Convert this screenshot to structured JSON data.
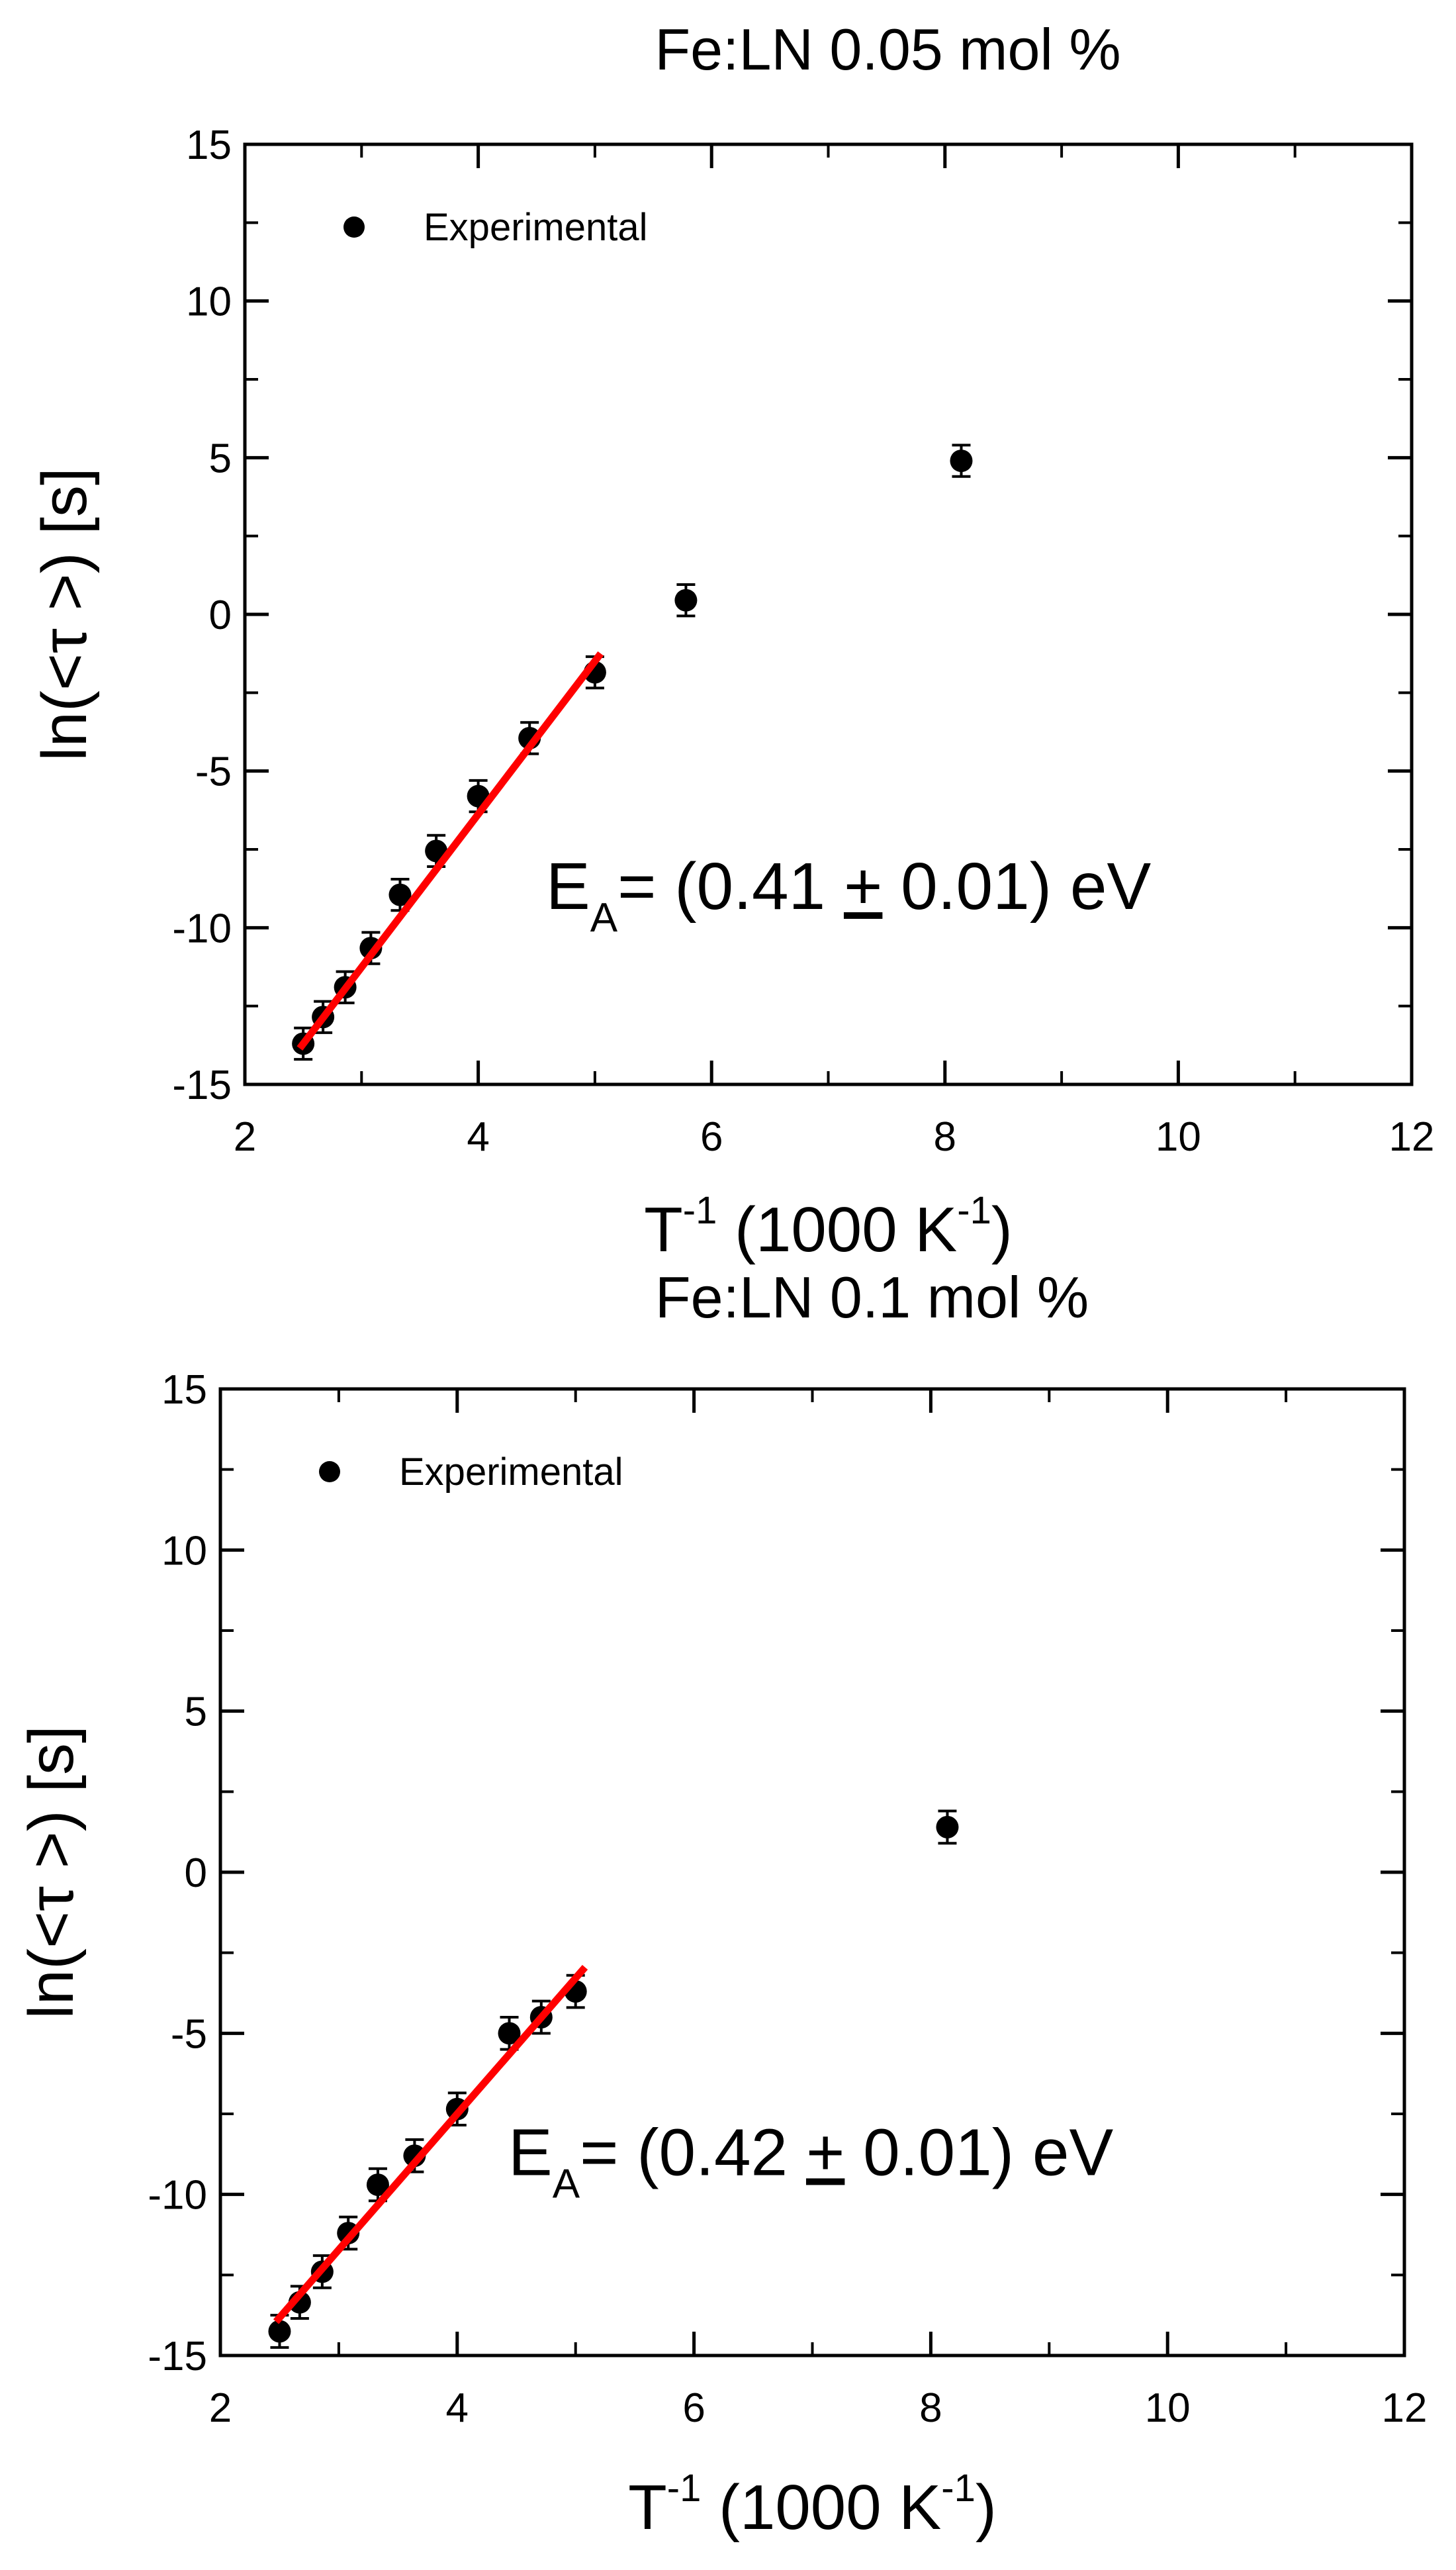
{
  "chart_data": [
    {
      "type": "scatter",
      "title": "Fe:LN 0.05 mol %",
      "xlabel_main": "T",
      "xlabel_sup": "-1",
      "xlabel_mid": " (1000 K",
      "xlabel_sup2": "-1",
      "xlabel_end": ")",
      "ylabel": "ln(<τ >) [s]",
      "xlim": [
        2,
        12
      ],
      "ylim": [
        -15,
        15
      ],
      "xticks": [
        2,
        4,
        6,
        8,
        10,
        12
      ],
      "yticks": [
        -15,
        -10,
        -5,
        0,
        5,
        10,
        15
      ],
      "xticks_minor": [
        3,
        5,
        7,
        9,
        11
      ],
      "yticks_minor": [
        -12.5,
        -7.5,
        -2.5,
        2.5,
        7.5,
        12.5
      ],
      "legend": {
        "label": "Experimental",
        "position": "top-left"
      },
      "annotation": {
        "pre": "E",
        "sub": "A",
        "post": "= (0.41 ",
        "pm": "+",
        "post2": " 0.01) eV"
      },
      "series": [
        {
          "name": "Experimental",
          "marker": "circle",
          "color": "#000000",
          "x": [
            2.5,
            2.67,
            2.86,
            3.08,
            3.33,
            3.64,
            4.0,
            4.44,
            5.0,
            5.78,
            8.14
          ],
          "y": [
            -13.7,
            -12.85,
            -11.9,
            -10.65,
            -8.95,
            -7.55,
            -5.8,
            -3.95,
            -1.85,
            0.45,
            4.9
          ],
          "err": [
            0.5,
            0.5,
            0.5,
            0.5,
            0.5,
            0.5,
            0.5,
            0.5,
            0.5,
            0.5,
            0.5
          ]
        },
        {
          "name": "Linear fit",
          "type": "line",
          "color": "#ff0000",
          "x": [
            2.47,
            5.05
          ],
          "y": [
            -13.85,
            -1.25
          ]
        }
      ]
    },
    {
      "type": "scatter",
      "title": "Fe:LN 0.1 mol %",
      "xlabel_main": "T",
      "xlabel_sup": "-1",
      "xlabel_mid": " (1000 K",
      "xlabel_sup2": "-1",
      "xlabel_end": ")",
      "ylabel": "ln(<τ >) [s]",
      "xlim": [
        2,
        12
      ],
      "ylim": [
        -15,
        15
      ],
      "xticks": [
        2,
        4,
        6,
        8,
        10,
        12
      ],
      "yticks": [
        -15,
        -10,
        -5,
        0,
        5,
        10,
        15
      ],
      "xticks_minor": [
        3,
        5,
        7,
        9,
        11
      ],
      "yticks_minor": [
        -12.5,
        -7.5,
        -2.5,
        2.5,
        7.5,
        12.5
      ],
      "legend": {
        "label": "Experimental",
        "position": "top-left"
      },
      "annotation": {
        "pre": "E",
        "sub": "A",
        "post": "= (0.42 ",
        "pm": "+",
        "post2": " 0.01) eV"
      },
      "series": [
        {
          "name": "Experimental",
          "marker": "circle",
          "color": "#000000",
          "x": [
            2.5,
            2.67,
            2.86,
            3.08,
            3.33,
            3.64,
            4.0,
            4.44,
            4.71,
            5.0,
            8.14
          ],
          "y": [
            -14.25,
            -13.35,
            -12.4,
            -11.2,
            -9.7,
            -8.8,
            -7.35,
            -5.0,
            -4.5,
            -3.7,
            1.4
          ],
          "err": [
            0.5,
            0.5,
            0.5,
            0.5,
            0.5,
            0.5,
            0.5,
            0.5,
            0.5,
            0.5,
            0.5
          ]
        },
        {
          "name": "Linear fit",
          "type": "line",
          "color": "#ff0000",
          "x": [
            2.47,
            5.08
          ],
          "y": [
            -13.95,
            -2.95
          ]
        }
      ]
    }
  ]
}
